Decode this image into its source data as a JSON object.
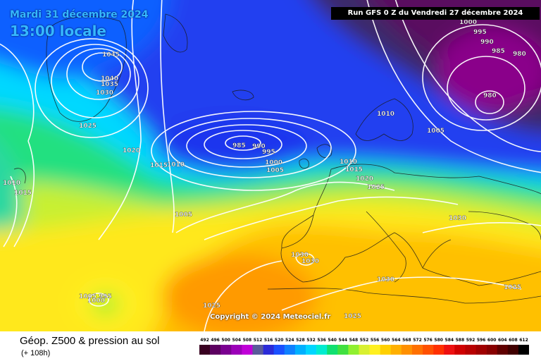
{
  "header": {
    "date": "Mardi 31 décembre 2024",
    "time": "13:00 locale",
    "run": "Run GFS 0 Z du Vendredi 27 décembre 2024"
  },
  "copyright": "Copyright © 2024 Meteociel.fr",
  "footer": {
    "title": "Géop. Z500 & pression au sol",
    "step": "(+ 108h)"
  },
  "legend": {
    "values": [
      "492",
      "496",
      "500",
      "504",
      "508",
      "512",
      "516",
      "520",
      "524",
      "528",
      "532",
      "536",
      "540",
      "544",
      "548",
      "552",
      "556",
      "560",
      "564",
      "568",
      "572",
      "576",
      "580",
      "584",
      "588",
      "592",
      "596",
      "600",
      "604",
      "608",
      "612"
    ],
    "colors": [
      "#380020",
      "#5c0060",
      "#7a0090",
      "#9b00b8",
      "#c000d8",
      "#5a5a9a",
      "#2b2bd8",
      "#1a50ff",
      "#0f80ff",
      "#00b0ff",
      "#00d6ff",
      "#00ecd0",
      "#10e070",
      "#40e040",
      "#90f030",
      "#d8f030",
      "#fff020",
      "#ffd000",
      "#ffb000",
      "#ff9000",
      "#ff7000",
      "#ff5000",
      "#ff3000",
      "#ee1010",
      "#d00000",
      "#b80000",
      "#a00000",
      "#880000",
      "#600000",
      "#400000",
      "#000000"
    ]
  },
  "pressure_labels": [
    "1045",
    "1040",
    "1035",
    "1030",
    "1025",
    "1020",
    "1015",
    "1010",
    "1010",
    "1015",
    "1005",
    "985",
    "990",
    "995",
    "1000",
    "1005",
    "1010",
    "1015",
    "1020",
    "1025",
    "1010",
    "1005",
    "1000",
    "995",
    "990",
    "985",
    "980",
    "980",
    "1030",
    "1030",
    "1030",
    "1030",
    "1025",
    "1025",
    "1025",
    "1005",
    "995",
    "1000"
  ]
}
